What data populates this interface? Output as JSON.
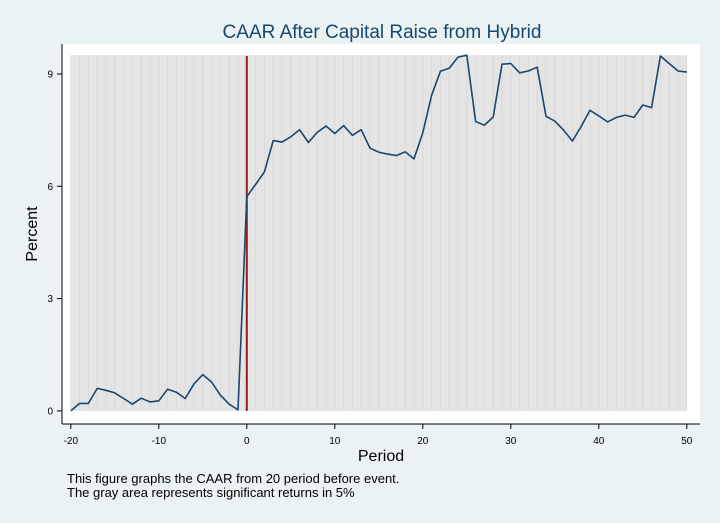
{
  "chart_data": {
    "type": "line",
    "title": "CAAR After Capital Raise from Hybrid",
    "xlabel": "Period",
    "ylabel": "Percent",
    "xlim": [
      -21,
      51.5
    ],
    "ylim": [
      -0.35,
      9.8
    ],
    "xticks": [
      -20,
      -10,
      0,
      10,
      20,
      30,
      40,
      50
    ],
    "yticks": [
      0,
      3,
      6,
      9
    ],
    "xtick_labels": [
      "-20",
      "-10",
      "0",
      "10",
      "20",
      "30",
      "40",
      "50"
    ],
    "ytick_labels": [
      "0",
      "3",
      "6",
      "9"
    ],
    "significant_region": {
      "x_start": -20,
      "x_end": 50,
      "y_start": 0,
      "y_end": 9.5,
      "color": "#e4e4e4"
    },
    "event_line": {
      "x": 0,
      "color": "#9b1b1b"
    },
    "series": [
      {
        "color": "#1a476f",
        "x": [
          -20,
          -19,
          -18,
          -17,
          -16,
          -15,
          -14,
          -13,
          -12,
          -11,
          -10,
          -9,
          -8,
          -7,
          -6,
          -5,
          -4,
          -3,
          -2,
          -1,
          0,
          1,
          2,
          3,
          4,
          5,
          6,
          7,
          8,
          9,
          10,
          11,
          12,
          13,
          14,
          15,
          16,
          17,
          18,
          19,
          20,
          21,
          22,
          23,
          24,
          25,
          26,
          27,
          28,
          29,
          30,
          31,
          32,
          33,
          34,
          35,
          36,
          37,
          38,
          39,
          40,
          41,
          42,
          43,
          44,
          45,
          46,
          47,
          48,
          49,
          50
        ],
        "values": [
          0,
          0.2,
          0.2,
          0.6,
          0.55,
          0.48,
          0.33,
          0.18,
          0.34,
          0.24,
          0.27,
          0.58,
          0.5,
          0.33,
          0.72,
          0.97,
          0.77,
          0.42,
          0.18,
          0.03,
          5.72,
          6.05,
          6.38,
          7.22,
          7.18,
          7.32,
          7.51,
          7.17,
          7.44,
          7.61,
          7.41,
          7.62,
          7.36,
          7.51,
          7.02,
          6.91,
          6.86,
          6.82,
          6.92,
          6.73,
          7.43,
          8.43,
          9.07,
          9.15,
          9.45,
          9.5,
          7.73,
          7.63,
          7.85,
          9.26,
          9.28,
          9.03,
          9.08,
          9.18,
          7.87,
          7.74,
          7.5,
          7.21,
          7.6,
          8.03,
          7.88,
          7.72,
          7.84,
          7.9,
          7.84,
          8.17,
          8.1,
          9.48,
          9.28,
          9.08,
          9.05
        ]
      }
    ]
  },
  "notes": [
    "This figure graphs the CAAR from 20 period before event.",
    "The gray area represents significant returns in 5%"
  ]
}
